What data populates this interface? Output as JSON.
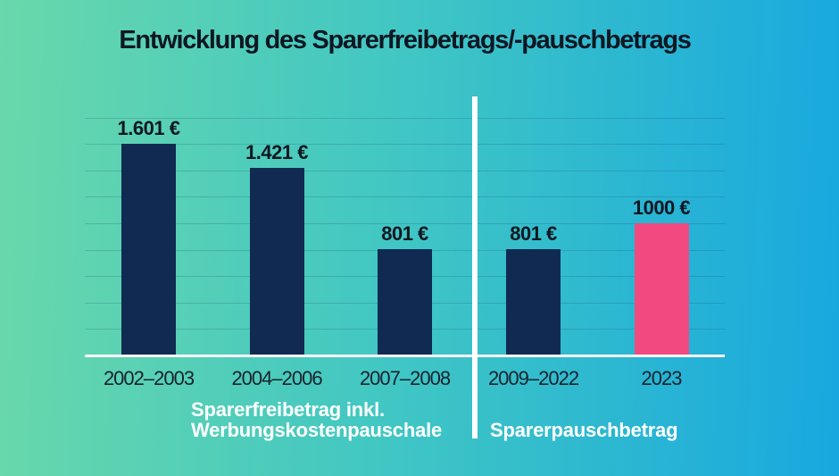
{
  "title": "Entwicklung des Sparerfreibetrags/-pauschbetrags",
  "chart_data": {
    "type": "bar",
    "title": "Entwicklung des Sparerfreibetrags/-pauschbetrags",
    "categories": [
      "2002–2003",
      "2004–2006",
      "2007–2008",
      "2009–2022",
      "2023"
    ],
    "values": [
      1601,
      1421,
      801,
      801,
      1000
    ],
    "value_labels": [
      "1.601 €",
      "1.421 €",
      "801 €",
      "801 €",
      "1000 €"
    ],
    "bar_colors": [
      "#102a52",
      "#102a52",
      "#102a52",
      "#102a52",
      "#f34981"
    ],
    "groups": [
      {
        "label_lines": [
          "Sparerfreibetrag inkl.",
          "Werbungskostenpauschale"
        ],
        "categories_span": [
          0,
          2
        ]
      },
      {
        "label_lines": [
          "Sparerpauschbetrag"
        ],
        "categories_span": [
          3,
          4
        ]
      }
    ],
    "ylim": [
      0,
      1800
    ],
    "grid_interval": 200,
    "grid": true,
    "legend": "none",
    "currency": "€",
    "colors": {
      "bar_default": "#102a52",
      "bar_highlight": "#f34981",
      "value_label": "#0e1722",
      "group_label": "#ffffff",
      "divider": "#ffffff",
      "background_left": "#69d8ab",
      "background_right": "#18a8df"
    }
  }
}
